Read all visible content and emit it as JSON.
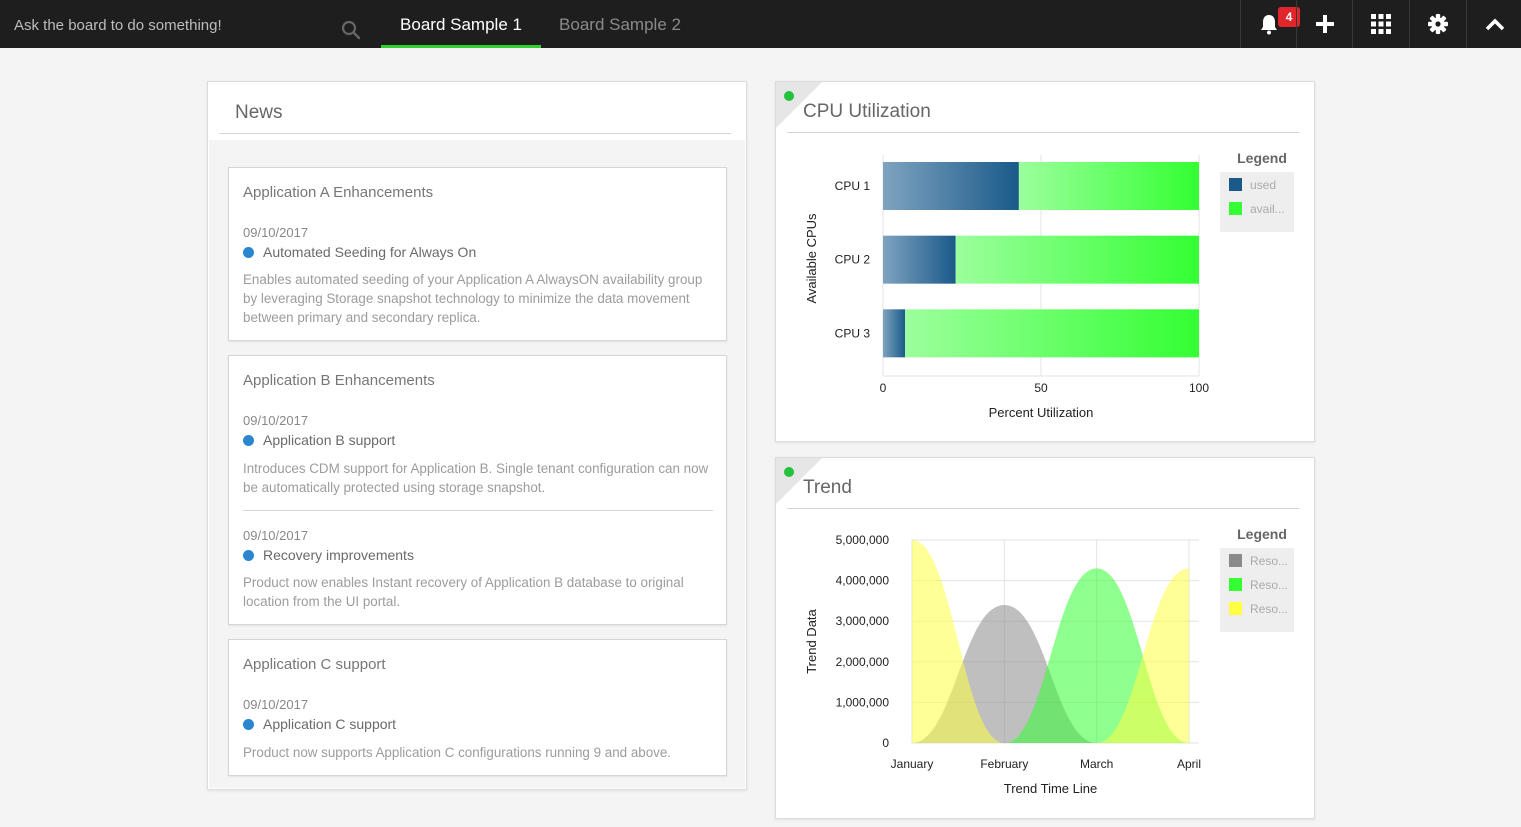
{
  "topbar": {
    "search_placeholder": "Ask the board to do something!",
    "tabs": [
      {
        "label": "Board Sample 1",
        "active": true
      },
      {
        "label": "Board Sample 2",
        "active": false
      }
    ],
    "notification_count": "4",
    "icons": [
      "search-icon",
      "bell-icon",
      "plus-icon",
      "grid-icon",
      "gear-icon",
      "chevron-up-icon"
    ],
    "colors": {
      "background": "#1e1e1e",
      "active_tab_underline": "#2ed12e",
      "badge": "#e0262b"
    }
  },
  "news": {
    "title": "News",
    "cards": [
      {
        "title": "Application A Enhancements",
        "items": [
          {
            "date": "09/10/2017",
            "headline": "Automated Seeding for Always On",
            "description": "Enables automated seeding of your Application A AlwaysON availability group by leveraging Storage snapshot technology to minimize the data movement between primary and secondary replica."
          }
        ]
      },
      {
        "title": "Application B Enhancements",
        "items": [
          {
            "date": "09/10/2017",
            "headline": "Application B support",
            "description": "Introduces CDM support for Application B. Single tenant configuration can now be automatically protected using storage snapshot."
          },
          {
            "date": "09/10/2017",
            "headline": "Recovery improvements",
            "description": "Product now enables Instant recovery of Application B database to original location from the UI portal."
          }
        ]
      },
      {
        "title": "Application C support",
        "items": [
          {
            "date": "09/10/2017",
            "headline": "Application C support",
            "description": "Product now supports Application C configurations running 9 and above."
          }
        ]
      }
    ]
  },
  "cpu_panel": {
    "title": "CPU Utilization",
    "status_color": "#22c23c"
  },
  "trend_panel": {
    "title": "Trend",
    "status_color": "#22c23c"
  },
  "chart_data": [
    {
      "type": "bar",
      "orientation": "horizontal",
      "stacked": true,
      "categories": [
        "CPU 1",
        "CPU 2",
        "CPU 3"
      ],
      "series": [
        {
          "name": "used",
          "legend_label": "used",
          "values": [
            43,
            23,
            7
          ],
          "color": "#1a5a8a"
        },
        {
          "name": "available",
          "legend_label": "avail...",
          "values": [
            57,
            77,
            93
          ],
          "color": "#33ff33"
        }
      ],
      "xlabel": "Percent Utilization",
      "ylabel": "Available CPUs",
      "xlim": [
        0,
        100
      ],
      "xticks": [
        "0",
        "50",
        "100"
      ],
      "legend_title": "Legend",
      "legend_position": "right",
      "grid": true
    },
    {
      "type": "area",
      "x": [
        "January",
        "February",
        "March",
        "April"
      ],
      "series": [
        {
          "legend_label": "Reso...",
          "color": "#8a8a8a",
          "values": [
            0,
            3400000,
            0,
            0
          ]
        },
        {
          "legend_label": "Reso...",
          "color": "#33ff33",
          "values": [
            0,
            0,
            4300000,
            0
          ]
        },
        {
          "legend_label": "Reso...",
          "color": "#ffff44",
          "values": [
            5000000,
            0,
            0,
            4300000
          ]
        }
      ],
      "xlabel": "Trend Time Line",
      "ylabel": "Trend Data",
      "ylim": [
        0,
        5000000
      ],
      "yticks": [
        "0",
        "1,000,000",
        "2,000,000",
        "3,000,000",
        "4,000,000",
        "5,000,000"
      ],
      "legend_title": "Legend",
      "legend_position": "right",
      "grid": true
    }
  ]
}
